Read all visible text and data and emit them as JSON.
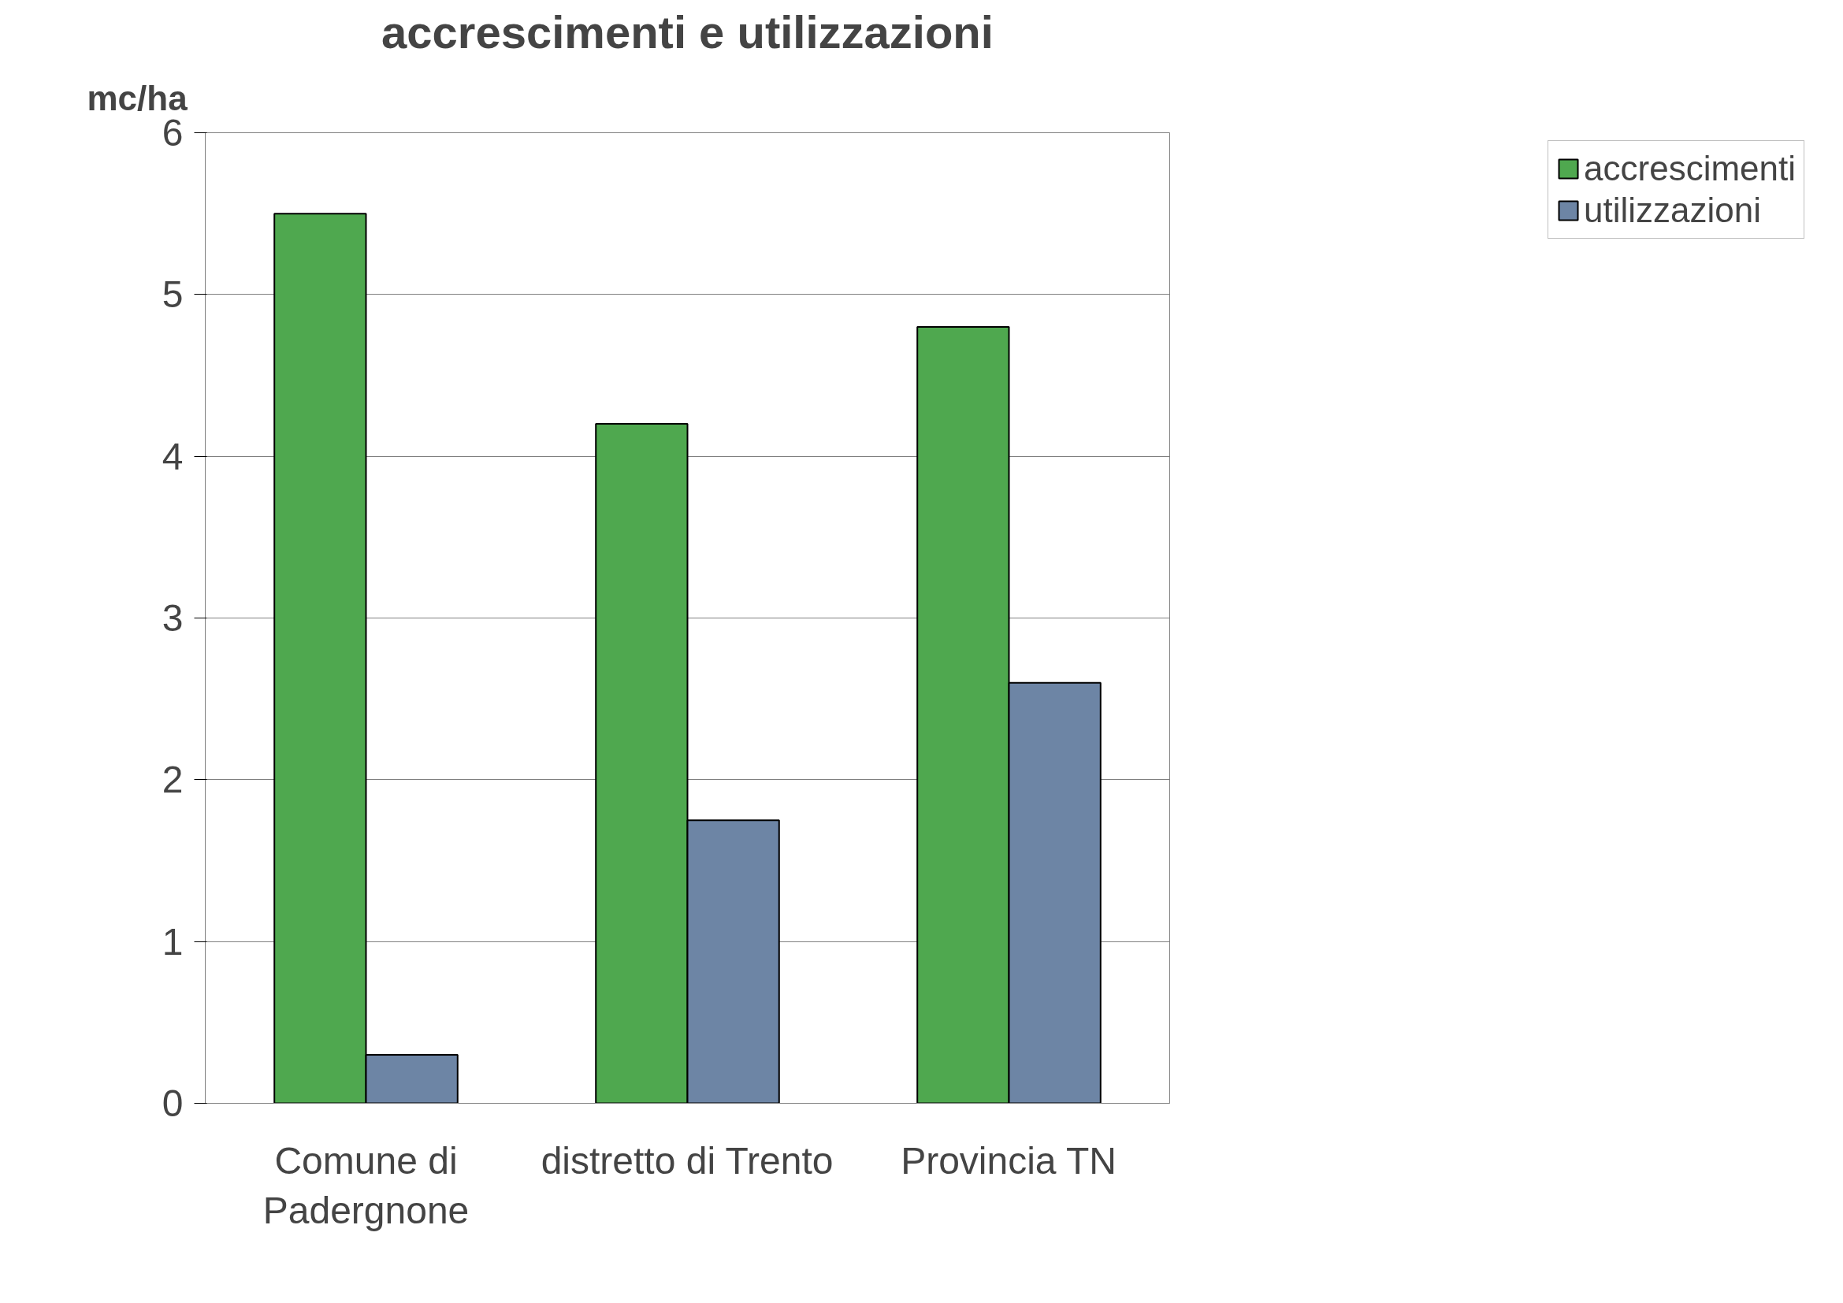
{
  "chart_data": {
    "type": "bar",
    "title": "accrescimenti e utilizzazioni",
    "ylabel": "mc/ha",
    "categories": [
      "Comune di Padergnone",
      "distretto di Trento",
      "Provincia TN"
    ],
    "series": [
      {
        "name": "accrescimenti",
        "color": "#4fa84f",
        "values": [
          5.5,
          4.2,
          4.8
        ]
      },
      {
        "name": "utilizzazioni",
        "color": "#6d85a5",
        "values": [
          0.3,
          1.75,
          2.6
        ]
      }
    ],
    "ylim": [
      0,
      6
    ],
    "yticks": [
      0,
      1,
      2,
      3,
      4,
      5,
      6
    ],
    "grid": "y",
    "legend": "top right"
  }
}
